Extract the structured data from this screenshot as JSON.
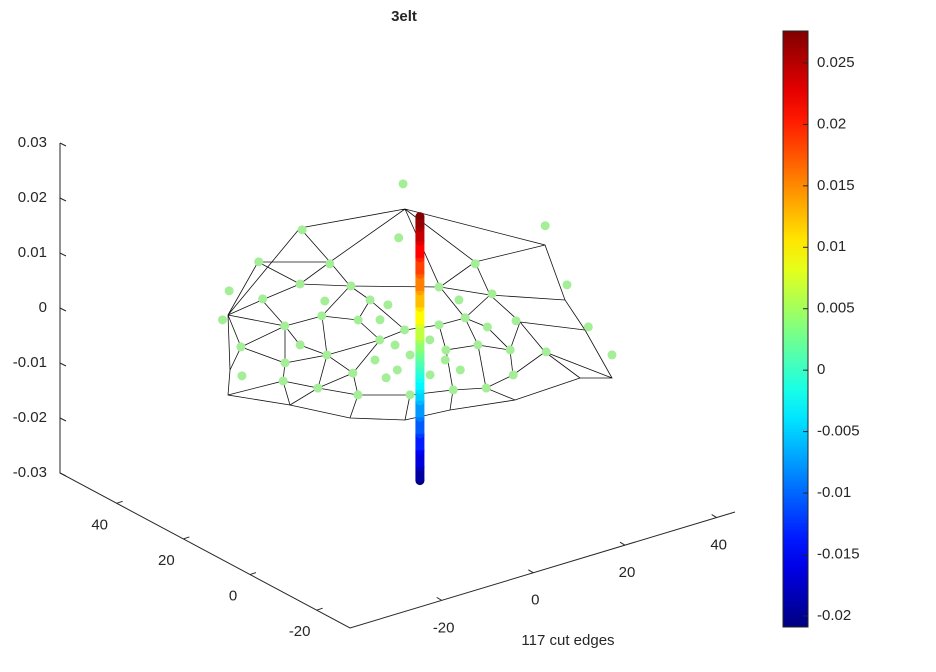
{
  "chart_data": {
    "type": "scatter3",
    "title": "3elt",
    "xlabel": "117 cut edges",
    "xlim": [
      -40,
      44
    ],
    "ylim": [
      -30,
      57
    ],
    "zlim": [
      -0.03,
      0.03
    ],
    "xticks": [
      -20,
      0,
      20,
      40
    ],
    "yticks": [
      -20,
      0,
      20,
      40
    ],
    "zticks": [
      -0.03,
      -0.02,
      -0.01,
      0,
      0.01,
      0.02,
      0.03
    ],
    "color": "#a4ee98",
    "x": [
      33.1,
      7.0,
      42.0,
      18.4,
      -7.4,
      2.0,
      22.3,
      -19.1,
      -7.4,
      29.6,
      -0.8,
      11.2,
      -27.6,
      -16.5,
      -8.4,
      -1.8,
      -0.6,
      10.6,
      16.8,
      21.6,
      -32.1,
      -20.5,
      -12.7,
      -8.7,
      6.8,
      7.5,
      13.1,
      17.6,
      -39.5,
      -30.1,
      -23.3,
      -22.2,
      -23.3,
      -10.9,
      -4.3,
      1.5,
      4.7,
      9.2,
      -35.1,
      -32.1,
      -28.3,
      -21.0,
      -13.7,
      -8.6,
      -1.4,
      -19.9,
      -11.5,
      -4.8,
      1.3,
      -16.3,
      -5.6,
      -10.1,
      -3.9,
      -7.0,
      -10.6,
      -16.8,
      -7.5,
      -13.0
    ],
    "y": [
      54.6,
      49.0,
      24.2,
      35.7,
      42.2,
      33.8,
      18.1,
      35.0,
      29.8,
      0.6,
      23.6,
      13.7,
      25.3,
      28.5,
      21.0,
      16.5,
      12.8,
      6.9,
      5.5,
      -16.8,
      13.6,
      16.4,
      16.0,
      10.6,
      -0.2,
      -5.9,
      -6.8,
      -29.4,
      3.1,
      3.1,
      7.9,
      1.4,
      -7.9,
      1.1,
      -9.7,
      -11.3,
      -16.6,
      -21.2,
      -3.2,
      -9.5,
      -16.3,
      -21.9,
      -24.8,
      -27.7,
      -25.9,
      -13.2,
      -11.9,
      2.0,
      0.1,
      -11.6,
      8.3,
      -2.4,
      -4.3,
      -13.2,
      -7.6,
      -5.6,
      -18.4,
      -16.9
    ],
    "z": [
      0.005,
      0.005,
      0.005,
      0.005,
      0.005,
      0.005,
      0.005,
      0.005,
      0.005,
      0.005,
      0.005,
      0.005,
      0.005,
      0.005,
      0.005,
      0.005,
      0.005,
      0.005,
      0.005,
      0.005,
      0.005,
      0.005,
      0.005,
      0.005,
      0.005,
      0.005,
      0.005,
      0.005,
      0.005,
      0.005,
      0.005,
      0.005,
      0.005,
      0.005,
      0.005,
      0.005,
      0.005,
      0.005,
      0.005,
      0.005,
      0.005,
      0.005,
      0.005,
      0.005,
      0.005,
      0.005,
      0.005,
      0.005,
      0.005,
      0.005,
      0.005,
      0.005,
      0.005,
      0.005,
      0.005,
      0.005,
      0.005,
      0.005
    ],
    "stem": {
      "x": -5.4,
      "y": -3.4,
      "z": [
        -0.0205,
        -0.018,
        -0.015,
        -0.012,
        -0.009,
        -0.006,
        -0.004,
        -0.002,
        -0.001,
        0,
        0.001,
        0.002,
        0.003,
        0.005,
        0.008,
        0.011,
        0.014,
        0.017,
        0.02,
        0.023,
        0.0255,
        0.0275
      ]
    },
    "colormap": "jet",
    "clim": [
      -0.0209,
      0.0276
    ],
    "cticks": [
      -0.02,
      -0.015,
      -0.01,
      -0.005,
      0,
      0.005,
      0.01,
      0.015,
      0.02,
      0.025
    ]
  }
}
